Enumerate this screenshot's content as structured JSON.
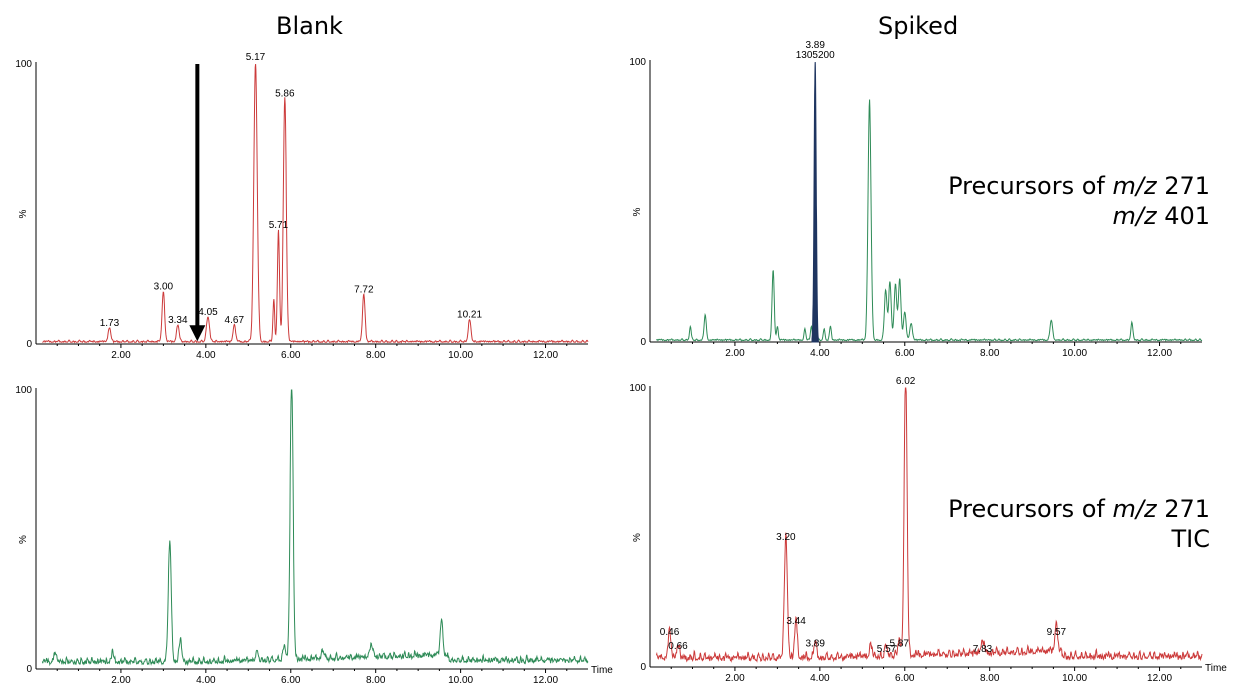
{
  "columns": {
    "left_title": "Blank",
    "right_title": "Spiked"
  },
  "legends": {
    "upper": {
      "line1_prefix": "Precursors of ",
      "line1_mz": "m/z",
      "line1_value": " 271",
      "line2_mz": "m/z",
      "line2_value": " 401"
    },
    "lower": {
      "line1_prefix": "Precursors of ",
      "line1_mz": "m/z",
      "line1_value": " 271",
      "line2": "TIC"
    }
  },
  "colors": {
    "red": "#cc3a3a",
    "green": "#2e8b57",
    "navy": "#1f3560",
    "arrow": "#000000"
  },
  "chart_data": [
    {
      "id": "blank-401",
      "type": "line",
      "color": "red",
      "xlim": [
        0,
        13.0
      ],
      "ylim": [
        0,
        100
      ],
      "xticks": [
        "2.00",
        "4.00",
        "6.00",
        "8.00",
        "10.00",
        "12.00"
      ],
      "xtick_values": [
        2,
        4,
        6,
        8,
        10,
        12
      ],
      "y_top_label": "100",
      "y_zero_label": "0",
      "ylabel": "%",
      "xlabel": "",
      "baseline": 0.6,
      "peaks": [
        {
          "x": 1.73,
          "h": 5,
          "w": 0.03
        },
        {
          "x": 3.0,
          "h": 18,
          "w": 0.03
        },
        {
          "x": 3.34,
          "h": 6,
          "w": 0.03
        },
        {
          "x": 4.05,
          "h": 9,
          "w": 0.035
        },
        {
          "x": 4.67,
          "h": 6,
          "w": 0.03
        },
        {
          "x": 5.17,
          "h": 100,
          "w": 0.04
        },
        {
          "x": 5.6,
          "h": 15,
          "w": 0.02
        },
        {
          "x": 5.71,
          "h": 40,
          "w": 0.025
        },
        {
          "x": 5.86,
          "h": 87,
          "w": 0.035
        },
        {
          "x": 7.72,
          "h": 17,
          "w": 0.03
        },
        {
          "x": 10.21,
          "h": 8,
          "w": 0.03
        }
      ],
      "labels": [
        {
          "text": "1.73",
          "x": 1.73,
          "y": 5
        },
        {
          "text": "3.00",
          "x": 3.0,
          "y": 18
        },
        {
          "text": "3.34",
          "x": 3.34,
          "y": 6
        },
        {
          "text": "4.05",
          "x": 4.05,
          "y": 9
        },
        {
          "text": "4.67",
          "x": 4.67,
          "y": 6
        },
        {
          "text": "5.17",
          "x": 5.17,
          "y": 100
        },
        {
          "text": "5.71",
          "x": 5.71,
          "y": 40
        },
        {
          "text": "5.86",
          "x": 5.86,
          "y": 87
        },
        {
          "text": "7.72",
          "x": 7.72,
          "y": 17
        },
        {
          "text": "10.21",
          "x": 10.21,
          "y": 8
        }
      ],
      "arrow": {
        "x": 3.8,
        "y_from": 100,
        "y_to": 1
      }
    },
    {
      "id": "spiked-401",
      "type": "line",
      "color": "green",
      "xlim": [
        0,
        13.0
      ],
      "ylim": [
        0,
        100
      ],
      "xticks": [
        "2.00",
        "4.00",
        "6.00",
        "8.00",
        "10.00",
        "12.00"
      ],
      "xtick_values": [
        2,
        4,
        6,
        8,
        10,
        12
      ],
      "y_top_label": "100",
      "y_zero_label": "0",
      "ylabel": "%",
      "xlabel": "",
      "baseline": 0.5,
      "peaks": [
        {
          "x": 0.95,
          "h": 5,
          "w": 0.02
        },
        {
          "x": 1.3,
          "h": 9,
          "w": 0.025
        },
        {
          "x": 2.9,
          "h": 25,
          "w": 0.025
        },
        {
          "x": 3.0,
          "h": 5,
          "w": 0.02
        },
        {
          "x": 3.65,
          "h": 4,
          "w": 0.02
        },
        {
          "x": 3.8,
          "h": 5,
          "w": 0.02
        },
        {
          "x": 4.1,
          "h": 4,
          "w": 0.02
        },
        {
          "x": 4.25,
          "h": 5,
          "w": 0.02
        },
        {
          "x": 5.17,
          "h": 86,
          "w": 0.035
        },
        {
          "x": 5.55,
          "h": 18,
          "w": 0.03
        },
        {
          "x": 5.65,
          "h": 21,
          "w": 0.03
        },
        {
          "x": 5.78,
          "h": 20,
          "w": 0.03
        },
        {
          "x": 5.88,
          "h": 22,
          "w": 0.03
        },
        {
          "x": 6.0,
          "h": 10,
          "w": 0.03
        },
        {
          "x": 6.15,
          "h": 6,
          "w": 0.03
        },
        {
          "x": 9.45,
          "h": 7,
          "w": 0.03
        },
        {
          "x": 11.35,
          "h": 6,
          "w": 0.025
        }
      ],
      "filled_peak": {
        "x": 3.89,
        "h": 100,
        "w": 0.025,
        "color": "navy"
      },
      "labels": [
        {
          "text": "3.89",
          "x": 3.89,
          "y": 100,
          "line2": "1305200"
        }
      ]
    },
    {
      "id": "blank-tic",
      "type": "line",
      "color": "green",
      "xlim": [
        0,
        13.0
      ],
      "ylim": [
        0,
        100
      ],
      "xticks": [
        "2.00",
        "4.00",
        "6.00",
        "8.00",
        "10.00",
        "12.00"
      ],
      "xtick_values": [
        2,
        4,
        6,
        8,
        10,
        12
      ],
      "y_top_label": "100",
      "y_zero_label": "0",
      "ylabel": "%",
      "xlabel": "Time",
      "baseline": 1.5,
      "rising_baseline": true,
      "peaks": [
        {
          "x": 0.45,
          "h": 3,
          "w": 0.03
        },
        {
          "x": 1.8,
          "h": 3,
          "w": 0.03
        },
        {
          "x": 3.15,
          "h": 43,
          "w": 0.035
        },
        {
          "x": 3.4,
          "h": 8,
          "w": 0.03
        },
        {
          "x": 5.2,
          "h": 3,
          "w": 0.03
        },
        {
          "x": 5.85,
          "h": 5,
          "w": 0.03
        },
        {
          "x": 6.02,
          "h": 100,
          "w": 0.035
        },
        {
          "x": 6.75,
          "h": 3,
          "w": 0.03
        },
        {
          "x": 7.9,
          "h": 4,
          "w": 0.04
        },
        {
          "x": 9.55,
          "h": 13,
          "w": 0.03
        }
      ],
      "labels": []
    },
    {
      "id": "spiked-tic",
      "type": "line",
      "color": "red",
      "xlim": [
        0,
        13.0
      ],
      "ylim": [
        0,
        100
      ],
      "xticks": [
        "2.00",
        "4.00",
        "6.00",
        "8.00",
        "10.00",
        "12.00"
      ],
      "xtick_values": [
        2,
        4,
        6,
        8,
        10,
        12
      ],
      "y_top_label": "100",
      "y_zero_label": "0",
      "ylabel": "%",
      "xlabel": "Time",
      "baseline": 2.0,
      "rising_baseline": true,
      "peaks": [
        {
          "x": 0.46,
          "h": 10,
          "w": 0.03
        },
        {
          "x": 0.66,
          "h": 5,
          "w": 0.03
        },
        {
          "x": 3.2,
          "h": 44,
          "w": 0.035
        },
        {
          "x": 3.44,
          "h": 14,
          "w": 0.03
        },
        {
          "x": 3.89,
          "h": 6,
          "w": 0.03
        },
        {
          "x": 5.2,
          "h": 4,
          "w": 0.03
        },
        {
          "x": 5.57,
          "h": 4,
          "w": 0.03
        },
        {
          "x": 5.87,
          "h": 6,
          "w": 0.03
        },
        {
          "x": 6.02,
          "h": 100,
          "w": 0.035
        },
        {
          "x": 7.83,
          "h": 4,
          "w": 0.04
        },
        {
          "x": 9.57,
          "h": 10,
          "w": 0.03
        }
      ],
      "labels": [
        {
          "text": "0.46",
          "x": 0.46,
          "y": 10
        },
        {
          "text": "0.66",
          "x": 0.66,
          "y": 5
        },
        {
          "text": "3.20",
          "x": 3.2,
          "y": 44
        },
        {
          "text": "3.44",
          "x": 3.44,
          "y": 14
        },
        {
          "text": "3.89",
          "x": 3.89,
          "y": 6
        },
        {
          "text": "5.57",
          "x": 5.57,
          "y": 4
        },
        {
          "text": "5.87",
          "x": 5.87,
          "y": 6
        },
        {
          "text": "6.02",
          "x": 6.02,
          "y": 100
        },
        {
          "text": "7.83",
          "x": 7.83,
          "y": 4
        },
        {
          "text": "9.57",
          "x": 9.57,
          "y": 10
        }
      ]
    }
  ]
}
